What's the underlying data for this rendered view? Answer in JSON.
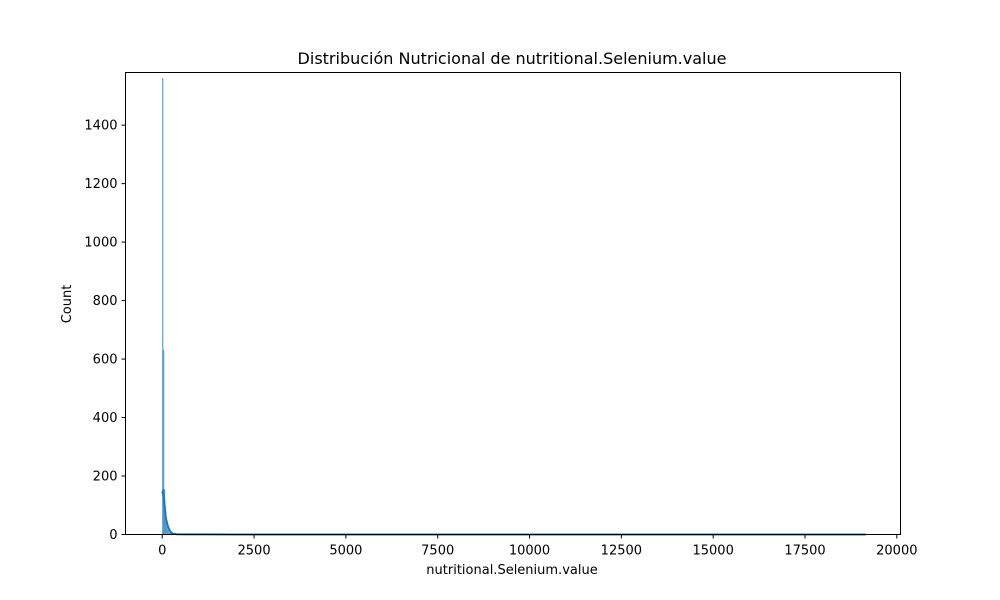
{
  "chart_data": {
    "type": "bar",
    "title": "Distribución Nutricional de nutritional.Selenium.value",
    "xlabel": "nutritional.Selenium.value",
    "ylabel": "Count",
    "xlim": [
      -1000,
      20100
    ],
    "ylim": [
      0,
      1580
    ],
    "xticks": [
      0,
      2500,
      5000,
      7500,
      10000,
      12500,
      15000,
      17500,
      20000
    ],
    "yticks": [
      0,
      200,
      400,
      600,
      800,
      1000,
      1200,
      1400
    ],
    "grid": false,
    "legend": "none",
    "histogram": {
      "bin_edges": [
        0,
        25,
        50,
        75,
        100,
        125,
        150,
        175,
        200,
        225,
        250,
        275,
        300
      ],
      "counts": [
        1560,
        630,
        155,
        80,
        45,
        25,
        15,
        8,
        5,
        3,
        2,
        1
      ]
    },
    "kde": {
      "x": [
        0,
        25,
        50,
        75,
        100,
        150,
        200,
        250,
        300,
        400,
        600,
        1000,
        2000,
        5000,
        10000,
        15000,
        19150
      ],
      "y": [
        140,
        150,
        120,
        85,
        55,
        30,
        14,
        6,
        3,
        1,
        0.5,
        0.3,
        0.2,
        0.1,
        0.1,
        0.1,
        0.1
      ]
    },
    "color": "#1f77b4"
  }
}
